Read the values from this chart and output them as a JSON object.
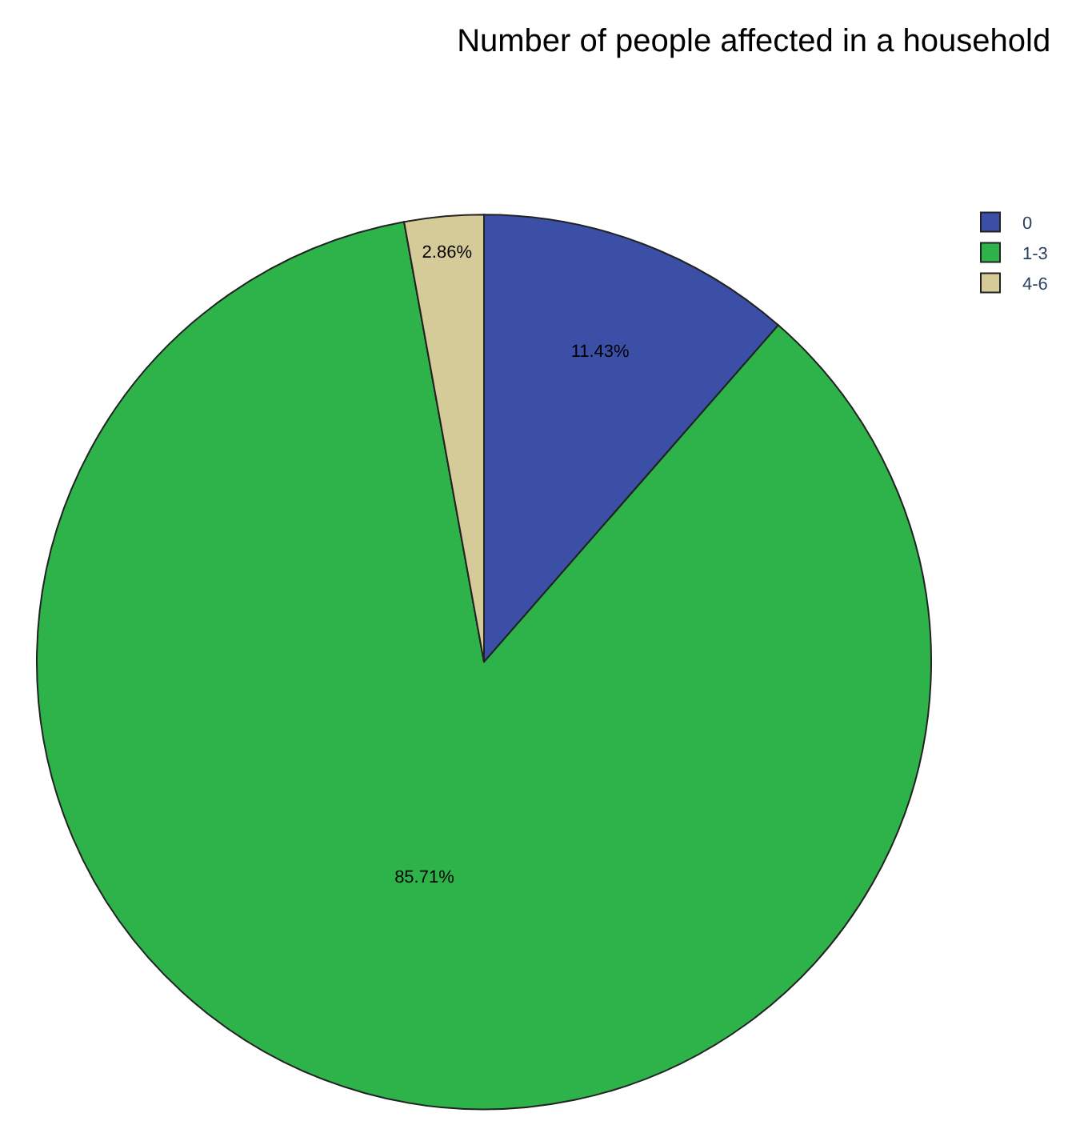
{
  "chart_data": {
    "type": "pie",
    "title": "Number of people affected in a household",
    "categories": [
      "0",
      "1-3",
      "4-6"
    ],
    "values": [
      11.43,
      85.71,
      2.86
    ],
    "colors": [
      "#3b4fa6",
      "#2eb34b",
      "#d5cb98"
    ],
    "value_labels": [
      "11.43%",
      "85.71%",
      "2.86%"
    ],
    "legend": "top right"
  }
}
